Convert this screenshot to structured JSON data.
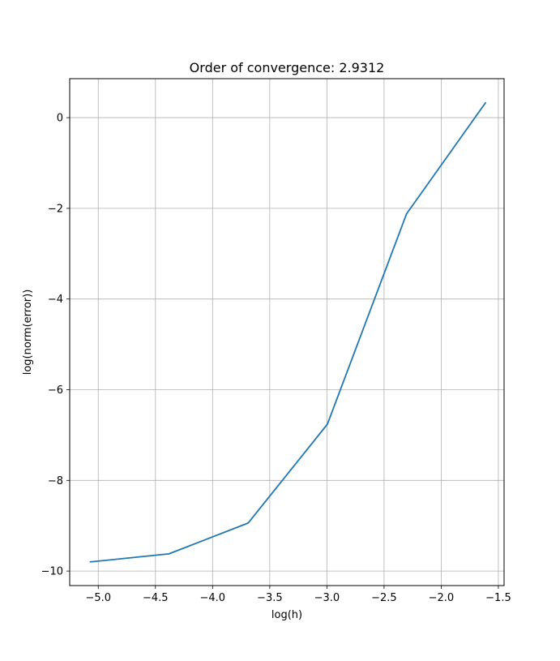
{
  "chart_data": {
    "type": "line",
    "title": "Order of convergence: 2.9312",
    "xlabel": "log(h)",
    "ylabel": "log(norm(error))",
    "xlim": [
      -5.25,
      -1.45
    ],
    "ylim": [
      -10.32,
      0.86
    ],
    "xticks": [
      -5.0,
      -4.5,
      -4.0,
      -3.5,
      -3.0,
      -2.5,
      -2.0,
      -1.5
    ],
    "xtick_labels": [
      "−5.0",
      "−4.5",
      "−4.0",
      "−3.5",
      "−3.0",
      "−2.5",
      "−2.0",
      "−1.5"
    ],
    "yticks": [
      0,
      -2,
      -4,
      -6,
      -8,
      -10
    ],
    "ytick_labels": [
      "0",
      "−2",
      "−4",
      "−6",
      "−8",
      "−10"
    ],
    "grid": true,
    "series": [
      {
        "color": "#1f77b4",
        "x": [
          -5.0752,
          -4.382,
          -3.6889,
          -2.9957,
          -2.3026,
          -1.6094
        ],
        "y": [
          -9.8,
          -9.62,
          -8.94,
          -6.76,
          -2.12,
          0.34
        ]
      }
    ]
  }
}
